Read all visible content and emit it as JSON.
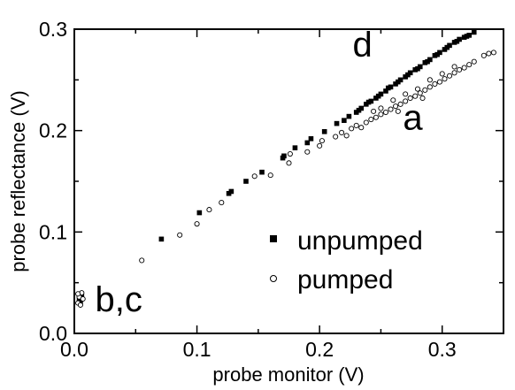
{
  "chart_data": {
    "type": "scatter",
    "xlabel": "probe monitor (V)",
    "ylabel": "probe reflectance (V)",
    "xlim": [
      0.0,
      0.35
    ],
    "ylim": [
      0.0,
      0.3
    ],
    "xticks": [
      {
        "value": 0.0,
        "label": "0.0"
      },
      {
        "value": 0.1,
        "label": "0.1"
      },
      {
        "value": 0.2,
        "label": "0.2"
      },
      {
        "value": 0.3,
        "label": "0.3"
      }
    ],
    "yticks": [
      {
        "value": 0.0,
        "label": "0.0"
      },
      {
        "value": 0.1,
        "label": "0.1"
      },
      {
        "value": 0.2,
        "label": "0.2"
      },
      {
        "value": 0.3,
        "label": "0.3"
      }
    ],
    "minor_tick_step": 0.05,
    "grid": false,
    "legend_position": "bottom-right",
    "series": [
      {
        "name": "unpumped",
        "marker": "filled-square",
        "color": "#000000",
        "points": [
          [
            0.005,
            0.031
          ],
          [
            0.005,
            0.034
          ],
          [
            0.006,
            0.037
          ],
          [
            0.004,
            0.033
          ],
          [
            0.071,
            0.093
          ],
          [
            0.102,
            0.119
          ],
          [
            0.126,
            0.138
          ],
          [
            0.128,
            0.14
          ],
          [
            0.14,
            0.15
          ],
          [
            0.153,
            0.159
          ],
          [
            0.17,
            0.173
          ],
          [
            0.171,
            0.175
          ],
          [
            0.18,
            0.183
          ],
          [
            0.19,
            0.188
          ],
          [
            0.193,
            0.192
          ],
          [
            0.204,
            0.199
          ],
          [
            0.214,
            0.207
          ],
          [
            0.22,
            0.21
          ],
          [
            0.224,
            0.214
          ],
          [
            0.23,
            0.218
          ],
          [
            0.234,
            0.222
          ],
          [
            0.238,
            0.226
          ],
          [
            0.242,
            0.229
          ],
          [
            0.246,
            0.232
          ],
          [
            0.25,
            0.236
          ],
          [
            0.254,
            0.239
          ],
          [
            0.258,
            0.243
          ],
          [
            0.262,
            0.246
          ],
          [
            0.266,
            0.25
          ],
          [
            0.27,
            0.253
          ],
          [
            0.274,
            0.257
          ],
          [
            0.278,
            0.26
          ],
          [
            0.282,
            0.263
          ],
          [
            0.286,
            0.267
          ],
          [
            0.29,
            0.27
          ],
          [
            0.294,
            0.274
          ],
          [
            0.298,
            0.277
          ],
          [
            0.302,
            0.28
          ],
          [
            0.306,
            0.284
          ],
          [
            0.31,
            0.287
          ],
          [
            0.314,
            0.29
          ],
          [
            0.318,
            0.292
          ],
          [
            0.322,
            0.294
          ],
          [
            0.326,
            0.297
          ],
          [
            0.256,
            0.242
          ],
          [
            0.264,
            0.248
          ],
          [
            0.272,
            0.255
          ],
          [
            0.28,
            0.261
          ],
          [
            0.288,
            0.268
          ],
          [
            0.296,
            0.275
          ],
          [
            0.304,
            0.282
          ],
          [
            0.312,
            0.288
          ],
          [
            0.32,
            0.293
          ],
          [
            0.248,
            0.234
          ],
          [
            0.24,
            0.228
          ],
          [
            0.232,
            0.22
          ]
        ]
      },
      {
        "name": "pumped",
        "marker": "open-circle",
        "color": "#000000",
        "points": [
          [
            0.003,
            0.03
          ],
          [
            0.004,
            0.036
          ],
          [
            0.006,
            0.04
          ],
          [
            0.005,
            0.028
          ],
          [
            0.007,
            0.034
          ],
          [
            0.003,
            0.039
          ],
          [
            0.055,
            0.072
          ],
          [
            0.086,
            0.097
          ],
          [
            0.1,
            0.108
          ],
          [
            0.11,
            0.122
          ],
          [
            0.12,
            0.129
          ],
          [
            0.147,
            0.155
          ],
          [
            0.16,
            0.156
          ],
          [
            0.175,
            0.168
          ],
          [
            0.176,
            0.177
          ],
          [
            0.19,
            0.179
          ],
          [
            0.2,
            0.185
          ],
          [
            0.202,
            0.19
          ],
          [
            0.213,
            0.194
          ],
          [
            0.218,
            0.198
          ],
          [
            0.222,
            0.195
          ],
          [
            0.226,
            0.202
          ],
          [
            0.23,
            0.205
          ],
          [
            0.234,
            0.203
          ],
          [
            0.238,
            0.208
          ],
          [
            0.242,
            0.211
          ],
          [
            0.246,
            0.213
          ],
          [
            0.25,
            0.216
          ],
          [
            0.254,
            0.218
          ],
          [
            0.258,
            0.221
          ],
          [
            0.262,
            0.224
          ],
          [
            0.266,
            0.226
          ],
          [
            0.27,
            0.229
          ],
          [
            0.274,
            0.232
          ],
          [
            0.278,
            0.234
          ],
          [
            0.282,
            0.237
          ],
          [
            0.286,
            0.24
          ],
          [
            0.29,
            0.243
          ],
          [
            0.294,
            0.246
          ],
          [
            0.298,
            0.248
          ],
          [
            0.302,
            0.251
          ],
          [
            0.306,
            0.254
          ],
          [
            0.31,
            0.257
          ],
          [
            0.314,
            0.26
          ],
          [
            0.318,
            0.262
          ],
          [
            0.322,
            0.265
          ],
          [
            0.326,
            0.268
          ],
          [
            0.334,
            0.274
          ],
          [
            0.338,
            0.276
          ],
          [
            0.342,
            0.277
          ],
          [
            0.26,
            0.23
          ],
          [
            0.27,
            0.236
          ],
          [
            0.28,
            0.241
          ],
          [
            0.29,
            0.25
          ],
          [
            0.3,
            0.256
          ],
          [
            0.31,
            0.263
          ],
          [
            0.25,
            0.222
          ],
          [
            0.244,
            0.219
          ],
          [
            0.264,
            0.219
          ],
          [
            0.284,
            0.232
          ]
        ]
      }
    ],
    "annotations": [
      {
        "text": "d",
        "x": 0.227,
        "y": 0.273
      },
      {
        "text": "a",
        "x": 0.268,
        "y": 0.201
      },
      {
        "text": "b,c",
        "x": 0.017,
        "y": 0.022
      }
    ]
  }
}
